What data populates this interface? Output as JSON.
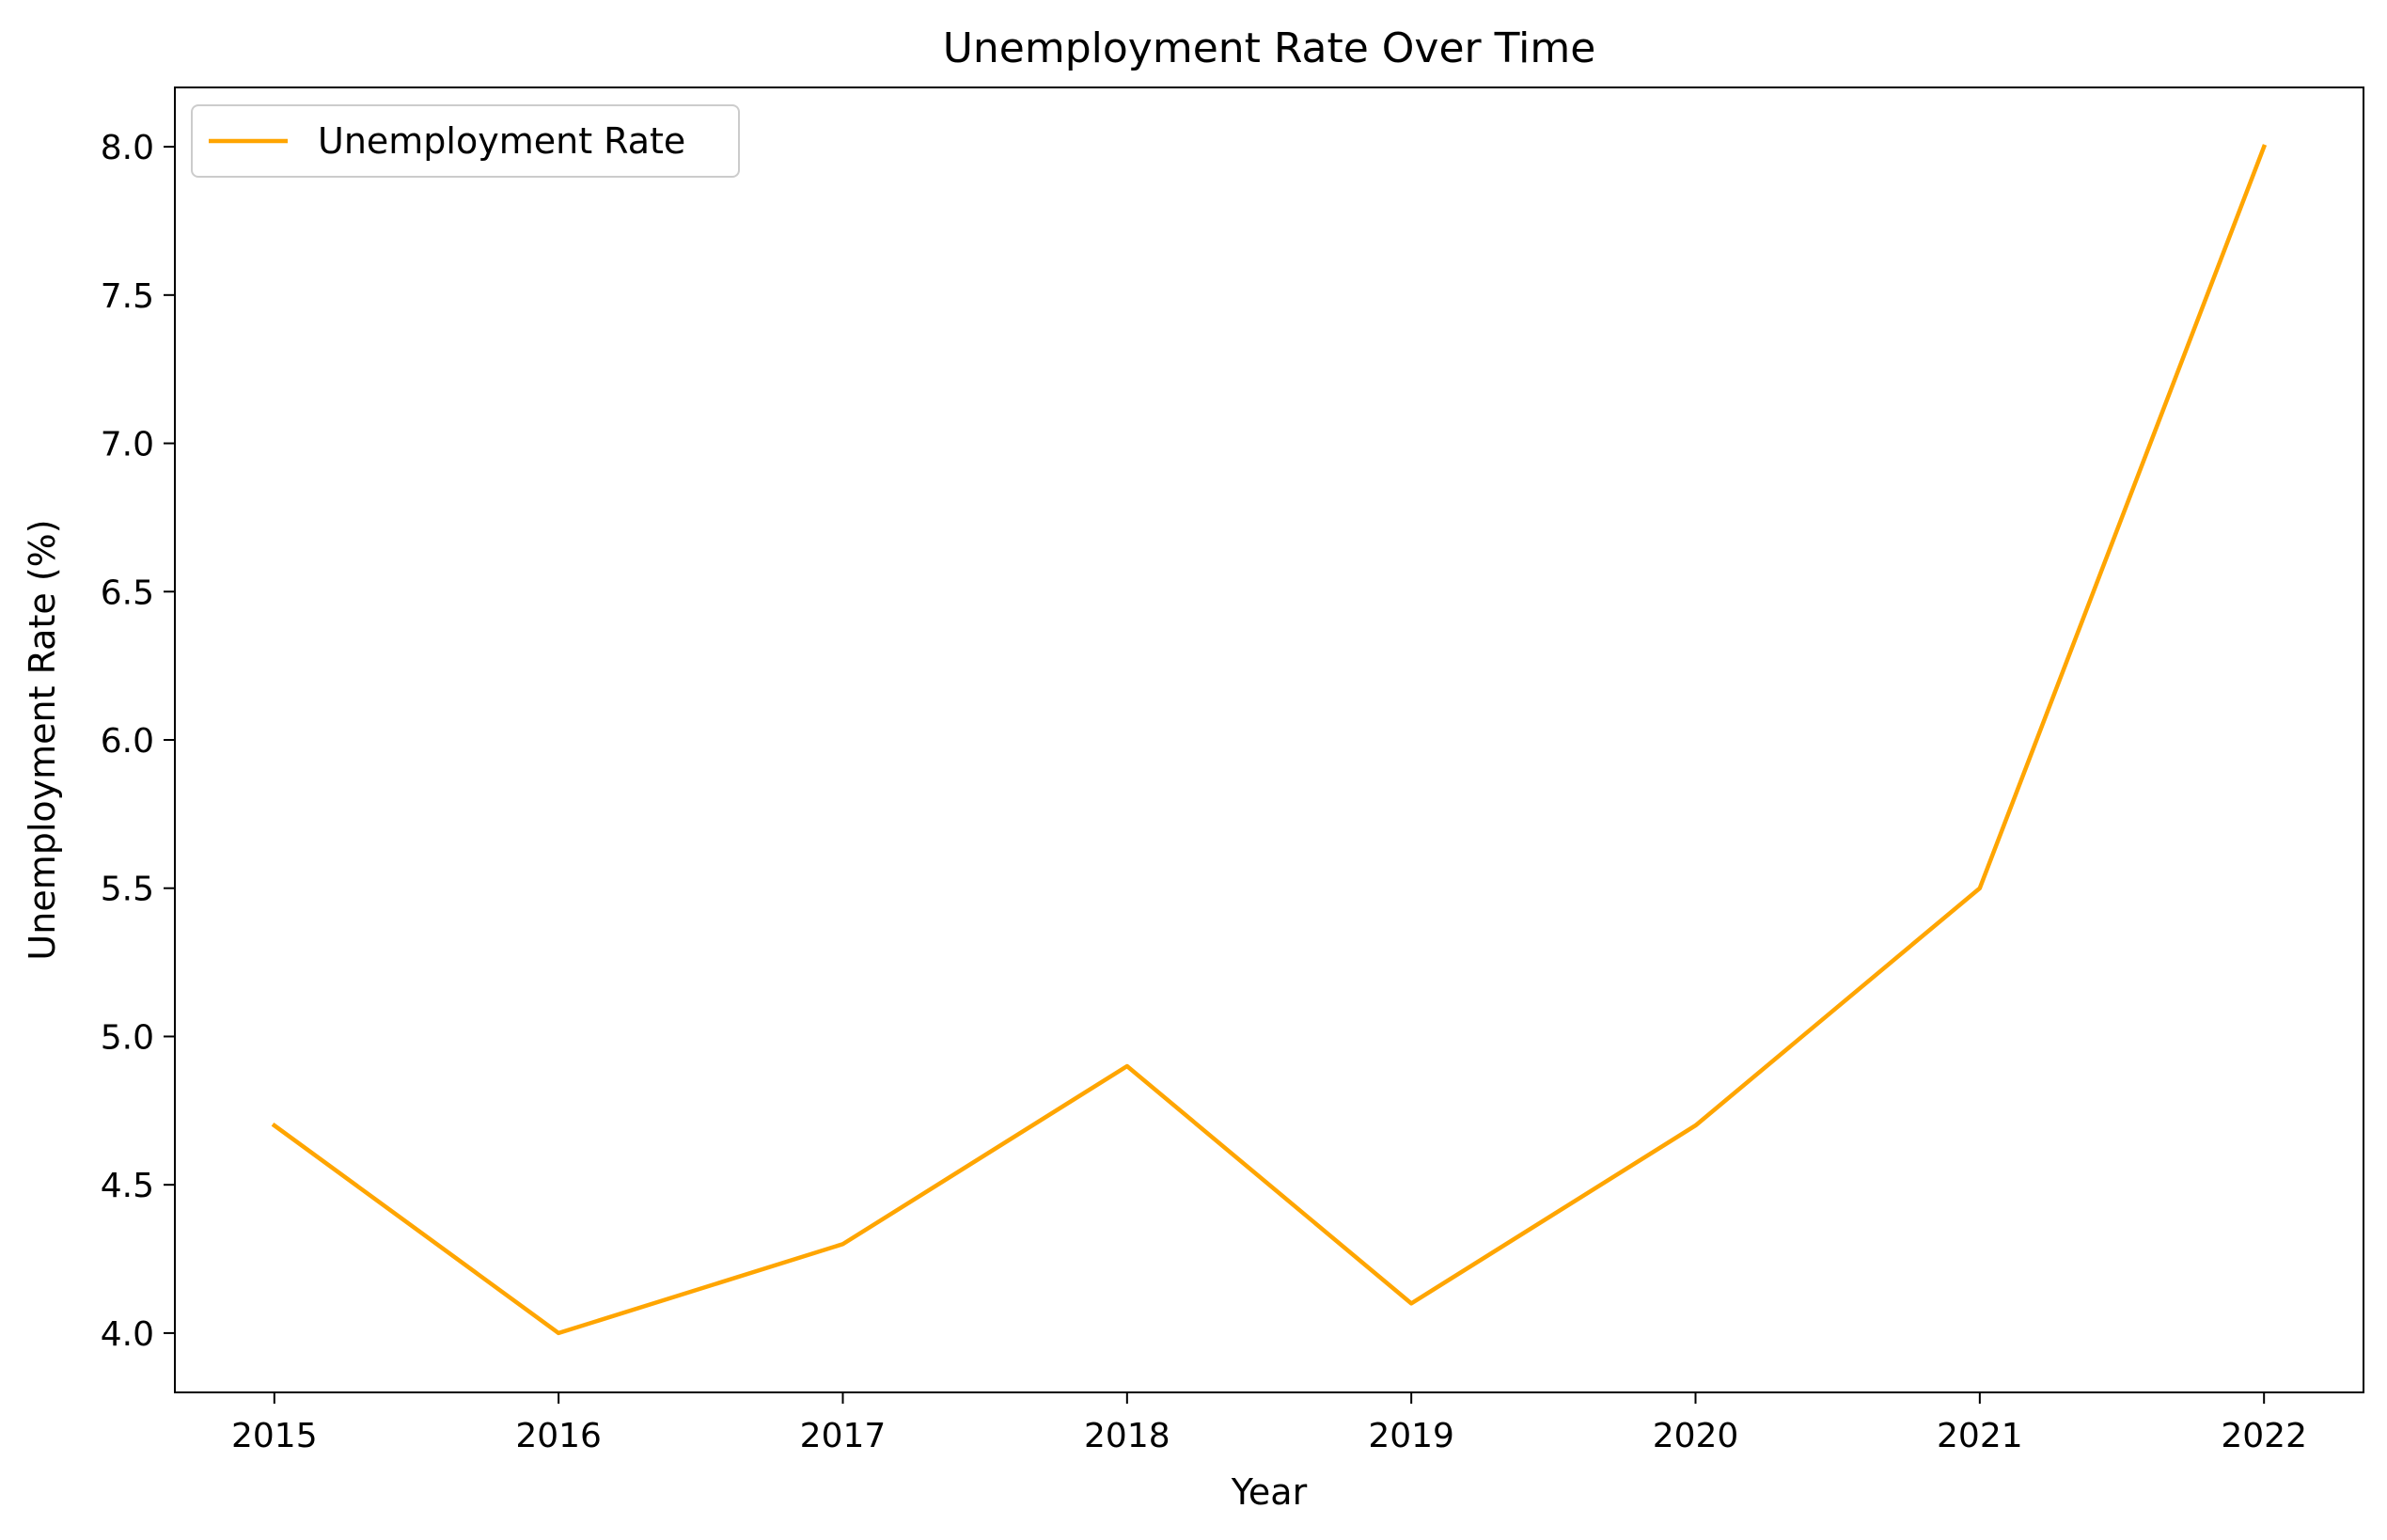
{
  "chart_data": {
    "type": "line",
    "title": "Unemployment Rate Over Time",
    "xlabel": "Year",
    "ylabel": "Unemployment Rate (%)",
    "x": [
      2015,
      2016,
      2017,
      2018,
      2019,
      2020,
      2021,
      2022
    ],
    "x_tick_labels": [
      "2015",
      "2016",
      "2017",
      "2018",
      "2019",
      "2020",
      "2021",
      "2022"
    ],
    "series": [
      {
        "name": "Unemployment Rate",
        "values": [
          4.7,
          4.0,
          4.3,
          4.9,
          4.1,
          4.7,
          5.5,
          8.0
        ],
        "color": "#ffa500"
      }
    ],
    "y_ticks": [
      4.0,
      4.5,
      5.0,
      5.5,
      6.0,
      6.5,
      7.0,
      7.5,
      8.0
    ],
    "y_tick_labels": [
      "4.0",
      "4.5",
      "5.0",
      "5.5",
      "6.0",
      "6.5",
      "7.0",
      "7.5",
      "8.0"
    ],
    "ylim": [
      3.8,
      8.2
    ],
    "xlim": [
      2014.65,
      2022.35
    ],
    "grid": false,
    "legend_position": "upper-left"
  }
}
